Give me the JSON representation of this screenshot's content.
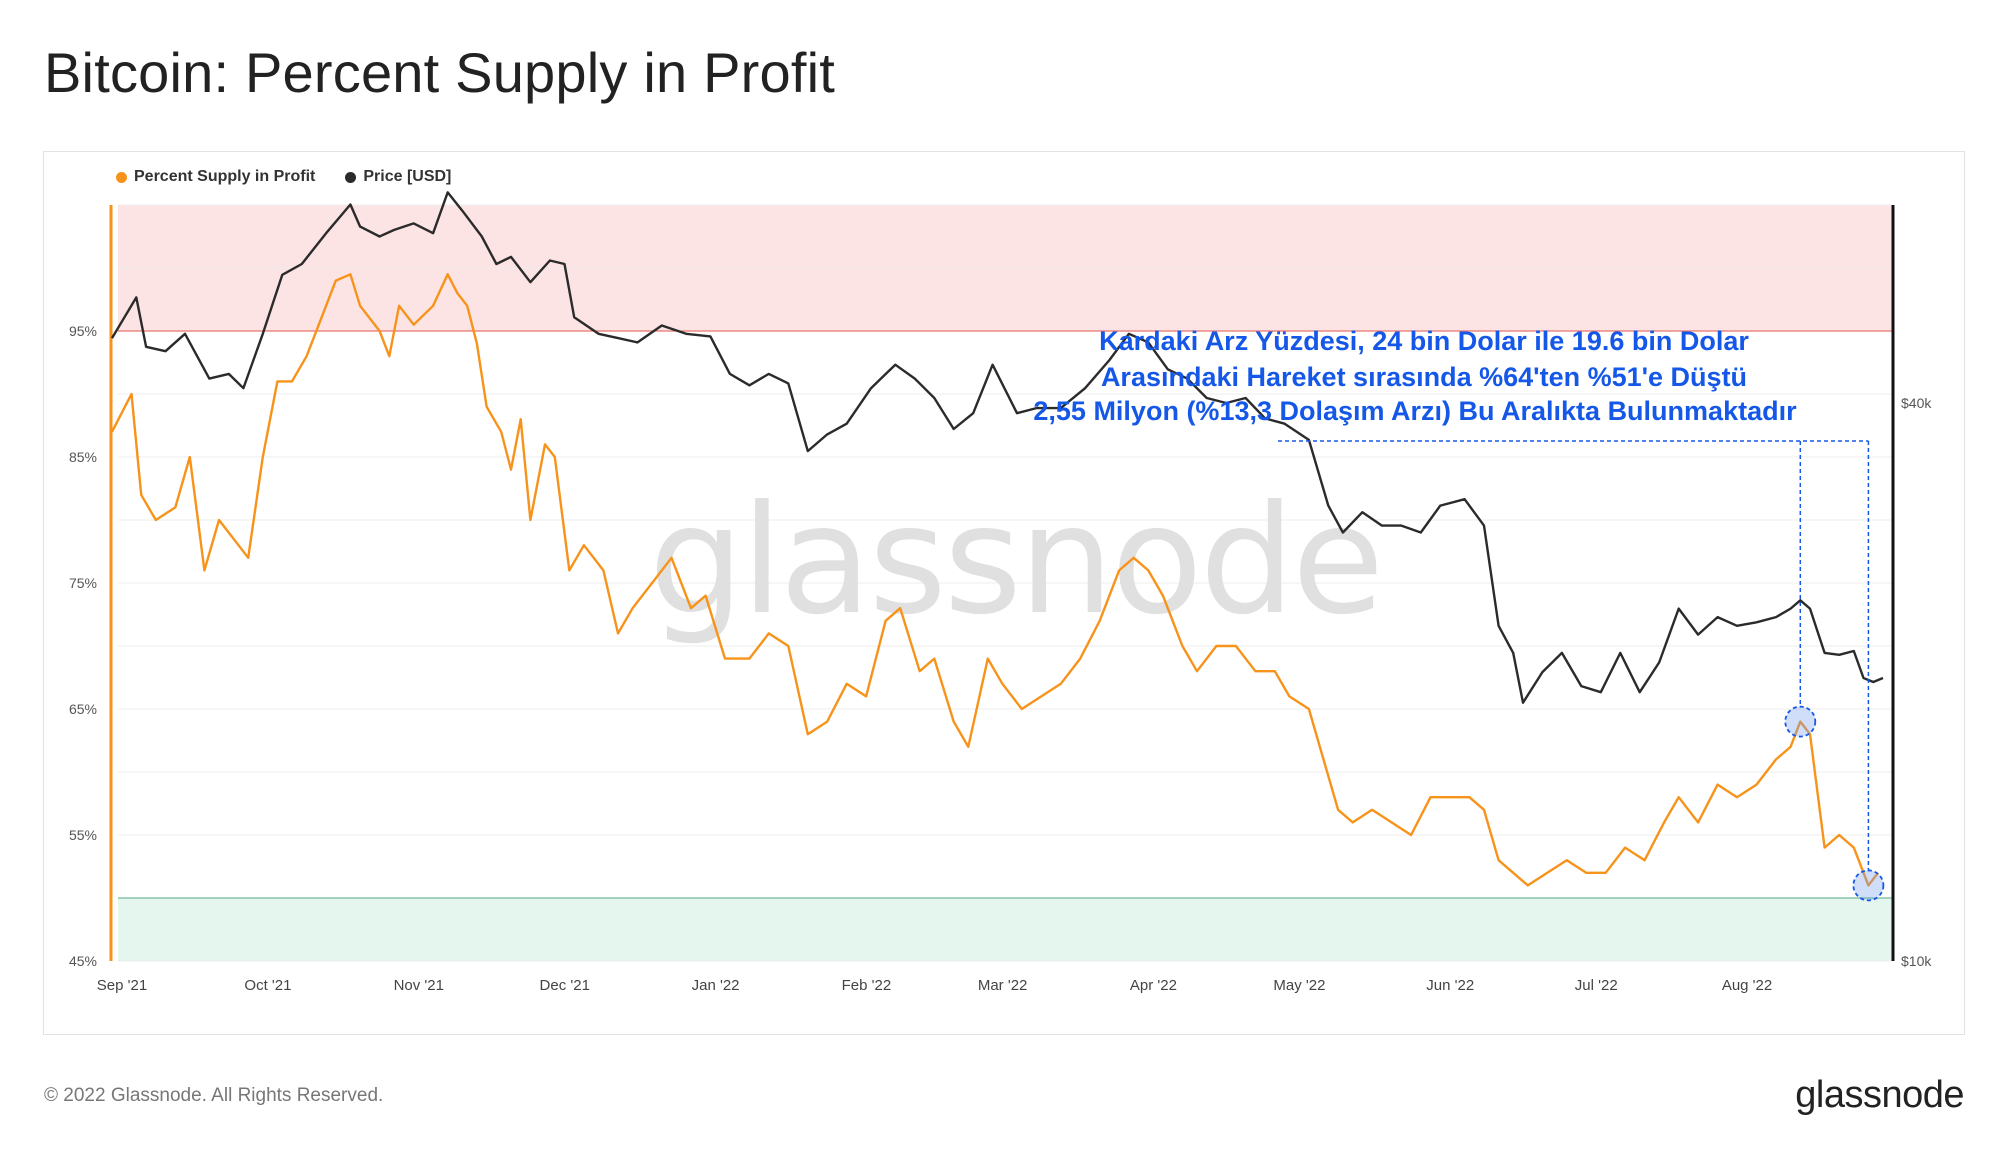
{
  "title": "Bitcoin: Percent Supply in Profit",
  "legend": {
    "supply": "Percent Supply in Profit",
    "price": "Price [USD]"
  },
  "colors": {
    "supply": "#f7931a",
    "price": "#2b2b2b",
    "annotation": "#1558e8",
    "top_band": "#fde4e4",
    "top_line": "#e8736c",
    "bottom_band": "#e5f6ef",
    "bottom_line": "#74b898"
  },
  "watermark": "glassnode",
  "footer": {
    "copyright": "© 2022 Glassnode. All Rights Reserved.",
    "logo": "glassnode"
  },
  "annotation": {
    "lines": [
      "Kardaki Arz Yüzdesi, 24 bin Dolar ile 19.6 bin Dolar",
      "Arasındaki Hareket sırasında %64'ten %51'e Düştü",
      "2,55 Milyon (%13,3 Dolaşım Arzı) Bu Aralıkta Bulunmaktadır"
    ],
    "markers": [
      {
        "date": "2022-08-14",
        "value": 64
      },
      {
        "date": "2022-08-28",
        "value": 51
      }
    ]
  },
  "chart_data": {
    "type": "line",
    "title": "Bitcoin: Percent Supply in Profit",
    "x_ticks": [
      "Sep '21",
      "Oct '21",
      "Nov '21",
      "Dec '21",
      "Jan '22",
      "Feb '22",
      "Mar '22",
      "Apr '22",
      "May '22",
      "Jun '22",
      "Jul '22",
      "Aug '22"
    ],
    "x_range": [
      "2021-09-01",
      "2022-08-31"
    ],
    "y_left": {
      "ticks": [
        "45%",
        "55%",
        "65%",
        "75%",
        "85%",
        "95%"
      ],
      "range": [
        45,
        105
      ]
    },
    "y_right": {
      "ticks": [
        "$10k",
        "$40k"
      ],
      "scale": "log",
      "range": [
        10000,
        75000
      ]
    },
    "bands": [
      {
        "name": "top",
        "from": 95,
        "to": 105
      },
      {
        "name": "bottom",
        "from": 45,
        "to": 50
      }
    ],
    "series": [
      {
        "name": "Percent Supply in Profit",
        "axis": "left",
        "points": [
          [
            "2021-09-01",
            87
          ],
          [
            "2021-09-05",
            90
          ],
          [
            "2021-09-07",
            82
          ],
          [
            "2021-09-10",
            80
          ],
          [
            "2021-09-14",
            81
          ],
          [
            "2021-09-17",
            85
          ],
          [
            "2021-09-20",
            76
          ],
          [
            "2021-09-23",
            80
          ],
          [
            "2021-09-27",
            78
          ],
          [
            "2021-09-29",
            77
          ],
          [
            "2021-10-02",
            85
          ],
          [
            "2021-10-05",
            91
          ],
          [
            "2021-10-08",
            91
          ],
          [
            "2021-10-11",
            93
          ],
          [
            "2021-10-14",
            96
          ],
          [
            "2021-10-17",
            99
          ],
          [
            "2021-10-20",
            99.5
          ],
          [
            "2021-10-22",
            97
          ],
          [
            "2021-10-26",
            95
          ],
          [
            "2021-10-28",
            93
          ],
          [
            "2021-10-30",
            97
          ],
          [
            "2021-11-02",
            95.5
          ],
          [
            "2021-11-06",
            97
          ],
          [
            "2021-11-09",
            99.5
          ],
          [
            "2021-11-11",
            98
          ],
          [
            "2021-11-13",
            97
          ],
          [
            "2021-11-15",
            94
          ],
          [
            "2021-11-17",
            89
          ],
          [
            "2021-11-20",
            87
          ],
          [
            "2021-11-22",
            84
          ],
          [
            "2021-11-24",
            88
          ],
          [
            "2021-11-26",
            80
          ],
          [
            "2021-11-29",
            86
          ],
          [
            "2021-12-01",
            85
          ],
          [
            "2021-12-04",
            76
          ],
          [
            "2021-12-07",
            78
          ],
          [
            "2021-12-11",
            76
          ],
          [
            "2021-12-14",
            71
          ],
          [
            "2021-12-17",
            73
          ],
          [
            "2021-12-21",
            75
          ],
          [
            "2021-12-25",
            77
          ],
          [
            "2021-12-29",
            73
          ],
          [
            "2022-01-01",
            74
          ],
          [
            "2022-01-05",
            69
          ],
          [
            "2022-01-10",
            69
          ],
          [
            "2022-01-14",
            71
          ],
          [
            "2022-01-18",
            70
          ],
          [
            "2022-01-22",
            63
          ],
          [
            "2022-01-26",
            64
          ],
          [
            "2022-01-30",
            67
          ],
          [
            "2022-02-03",
            66
          ],
          [
            "2022-02-07",
            72
          ],
          [
            "2022-02-10",
            73
          ],
          [
            "2022-02-14",
            68
          ],
          [
            "2022-02-17",
            69
          ],
          [
            "2022-02-21",
            64
          ],
          [
            "2022-02-24",
            62
          ],
          [
            "2022-02-28",
            69
          ],
          [
            "2022-03-03",
            67
          ],
          [
            "2022-03-07",
            65
          ],
          [
            "2022-03-11",
            66
          ],
          [
            "2022-03-15",
            67
          ],
          [
            "2022-03-19",
            69
          ],
          [
            "2022-03-23",
            72
          ],
          [
            "2022-03-27",
            76
          ],
          [
            "2022-03-30",
            77
          ],
          [
            "2022-04-02",
            76
          ],
          [
            "2022-04-05",
            74
          ],
          [
            "2022-04-09",
            70
          ],
          [
            "2022-04-12",
            68
          ],
          [
            "2022-04-16",
            70
          ],
          [
            "2022-04-20",
            70
          ],
          [
            "2022-04-24",
            68
          ],
          [
            "2022-04-28",
            68
          ],
          [
            "2022-05-01",
            66
          ],
          [
            "2022-05-05",
            65
          ],
          [
            "2022-05-08",
            61
          ],
          [
            "2022-05-11",
            57
          ],
          [
            "2022-05-14",
            56
          ],
          [
            "2022-05-18",
            57
          ],
          [
            "2022-05-22",
            56
          ],
          [
            "2022-05-26",
            55
          ],
          [
            "2022-05-30",
            58
          ],
          [
            "2022-06-03",
            58
          ],
          [
            "2022-06-07",
            58
          ],
          [
            "2022-06-10",
            57
          ],
          [
            "2022-06-13",
            53
          ],
          [
            "2022-06-16",
            52
          ],
          [
            "2022-06-19",
            51
          ],
          [
            "2022-06-23",
            52
          ],
          [
            "2022-06-27",
            53
          ],
          [
            "2022-07-01",
            52
          ],
          [
            "2022-07-05",
            52
          ],
          [
            "2022-07-09",
            54
          ],
          [
            "2022-07-13",
            53
          ],
          [
            "2022-07-17",
            56
          ],
          [
            "2022-07-20",
            58
          ],
          [
            "2022-07-24",
            56
          ],
          [
            "2022-07-28",
            59
          ],
          [
            "2022-08-01",
            58
          ],
          [
            "2022-08-05",
            59
          ],
          [
            "2022-08-09",
            61
          ],
          [
            "2022-08-12",
            62
          ],
          [
            "2022-08-14",
            64
          ],
          [
            "2022-08-16",
            63
          ],
          [
            "2022-08-19",
            54
          ],
          [
            "2022-08-22",
            55
          ],
          [
            "2022-08-25",
            54
          ],
          [
            "2022-08-28",
            51
          ],
          [
            "2022-08-30",
            52
          ]
        ]
      },
      {
        "name": "Price [USD]",
        "axis": "right",
        "points": [
          [
            "2021-09-01",
            47000
          ],
          [
            "2021-09-06",
            52000
          ],
          [
            "2021-09-08",
            46000
          ],
          [
            "2021-09-12",
            45500
          ],
          [
            "2021-09-16",
            47500
          ],
          [
            "2021-09-21",
            42500
          ],
          [
            "2021-09-25",
            43000
          ],
          [
            "2021-09-28",
            41500
          ],
          [
            "2021-10-02",
            47500
          ],
          [
            "2021-10-06",
            55000
          ],
          [
            "2021-10-10",
            56500
          ],
          [
            "2021-10-15",
            61000
          ],
          [
            "2021-10-20",
            65500
          ],
          [
            "2021-10-22",
            62000
          ],
          [
            "2021-10-26",
            60500
          ],
          [
            "2021-10-29",
            61500
          ],
          [
            "2021-11-02",
            62500
          ],
          [
            "2021-11-06",
            61000
          ],
          [
            "2021-11-09",
            67500
          ],
          [
            "2021-11-12",
            64500
          ],
          [
            "2021-11-16",
            60500
          ],
          [
            "2021-11-19",
            56500
          ],
          [
            "2021-11-22",
            57500
          ],
          [
            "2021-11-26",
            54000
          ],
          [
            "2021-11-30",
            57000
          ],
          [
            "2021-12-03",
            56500
          ],
          [
            "2021-12-05",
            49500
          ],
          [
            "2021-12-10",
            47500
          ],
          [
            "2021-12-14",
            47000
          ],
          [
            "2021-12-18",
            46500
          ],
          [
            "2021-12-23",
            48500
          ],
          [
            "2021-12-28",
            47500
          ],
          [
            "2022-01-02",
            47200
          ],
          [
            "2022-01-06",
            43000
          ],
          [
            "2022-01-10",
            41800
          ],
          [
            "2022-01-14",
            43000
          ],
          [
            "2022-01-18",
            42000
          ],
          [
            "2022-01-22",
            35500
          ],
          [
            "2022-01-26",
            37000
          ],
          [
            "2022-01-30",
            38000
          ],
          [
            "2022-02-04",
            41500
          ],
          [
            "2022-02-09",
            44000
          ],
          [
            "2022-02-13",
            42500
          ],
          [
            "2022-02-17",
            40500
          ],
          [
            "2022-02-21",
            37500
          ],
          [
            "2022-02-25",
            39000
          ],
          [
            "2022-03-01",
            44000
          ],
          [
            "2022-03-06",
            39000
          ],
          [
            "2022-03-10",
            39500
          ],
          [
            "2022-03-15",
            39500
          ],
          [
            "2022-03-20",
            41500
          ],
          [
            "2022-03-25",
            44500
          ],
          [
            "2022-03-29",
            47500
          ],
          [
            "2022-04-02",
            46500
          ],
          [
            "2022-04-06",
            43500
          ],
          [
            "2022-04-10",
            42500
          ],
          [
            "2022-04-14",
            40500
          ],
          [
            "2022-04-18",
            40000
          ],
          [
            "2022-04-22",
            40500
          ],
          [
            "2022-04-26",
            38500
          ],
          [
            "2022-04-30",
            38000
          ],
          [
            "2022-05-05",
            36500
          ],
          [
            "2022-05-09",
            31000
          ],
          [
            "2022-05-12",
            29000
          ],
          [
            "2022-05-16",
            30500
          ],
          [
            "2022-05-20",
            29500
          ],
          [
            "2022-05-24",
            29500
          ],
          [
            "2022-05-28",
            29000
          ],
          [
            "2022-06-01",
            31000
          ],
          [
            "2022-06-06",
            31500
          ],
          [
            "2022-06-10",
            29500
          ],
          [
            "2022-06-13",
            23000
          ],
          [
            "2022-06-16",
            21500
          ],
          [
            "2022-06-18",
            19000
          ],
          [
            "2022-06-22",
            20500
          ],
          [
            "2022-06-26",
            21500
          ],
          [
            "2022-06-30",
            19800
          ],
          [
            "2022-07-04",
            19500
          ],
          [
            "2022-07-08",
            21500
          ],
          [
            "2022-07-12",
            19500
          ],
          [
            "2022-07-16",
            21000
          ],
          [
            "2022-07-20",
            24000
          ],
          [
            "2022-07-24",
            22500
          ],
          [
            "2022-07-28",
            23500
          ],
          [
            "2022-08-01",
            23000
          ],
          [
            "2022-08-05",
            23200
          ],
          [
            "2022-08-09",
            23500
          ],
          [
            "2022-08-12",
            24000
          ],
          [
            "2022-08-14",
            24500
          ],
          [
            "2022-08-16",
            24000
          ],
          [
            "2022-08-19",
            21500
          ],
          [
            "2022-08-22",
            21400
          ],
          [
            "2022-08-25",
            21600
          ],
          [
            "2022-08-27",
            20200
          ],
          [
            "2022-08-29",
            20000
          ],
          [
            "2022-08-31",
            20200
          ]
        ]
      }
    ]
  }
}
